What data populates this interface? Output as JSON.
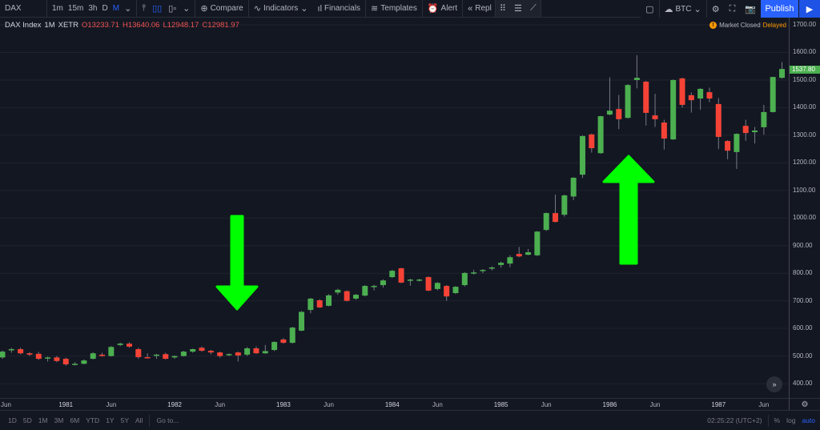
{
  "toolbar": {
    "symbol": "DAX",
    "intervals": [
      "1m",
      "15m",
      "3h",
      "D",
      "M"
    ],
    "active_interval": "M",
    "compare": "Compare",
    "indicators": "Indicators",
    "financials": "Financials",
    "templates": "Templates",
    "alert": "Alert",
    "replay": "Repl",
    "btc": "BTC",
    "publish": "Publish"
  },
  "legend": {
    "title": "DAX Index",
    "interval": "1M",
    "exchange": "XETR",
    "open": "O13233.71",
    "high": "H13640.06",
    "low": "L12948.17",
    "close": "C12981.97"
  },
  "status": {
    "market": "Market Closed",
    "delayed": "Delayed"
  },
  "colors": {
    "up": "#4caf50",
    "down": "#f44336",
    "arrow": "#00ff00",
    "accent": "#2962ff",
    "background": "#131722",
    "delayed": "#ff9800"
  },
  "bottom": {
    "ranges": [
      "1D",
      "5D",
      "1M",
      "3M",
      "6M",
      "YTD",
      "1Y",
      "5Y",
      "All"
    ],
    "goto": "Go to...",
    "clock": "02:25:22 (UTC+2)",
    "percent": "%",
    "log": "log",
    "auto": "auto"
  },
  "annotations": [
    {
      "type": "arrow",
      "direction": "down",
      "color": "#00ff00",
      "near": "1982-09"
    },
    {
      "type": "arrow",
      "direction": "up",
      "color": "#00ff00",
      "near": "1986-05"
    }
  ],
  "chart_data": {
    "type": "candlestick",
    "title": "",
    "ylim": [
      380,
      1720
    ],
    "grid": true,
    "price_ticks": [
      "1700.00",
      "1600.00",
      "1500.00",
      "1400.00",
      "1300.00",
      "1200.00",
      "1100.00",
      "1000.00",
      "900.00",
      "800.00",
      "700.00",
      "600.00",
      "500.00",
      "400.00"
    ],
    "time_ticks": [
      {
        "label": "Jun",
        "date": "1980-06"
      },
      {
        "label": "1981",
        "date": "1981-01"
      },
      {
        "label": "Jun",
        "date": "1981-06"
      },
      {
        "label": "1982",
        "date": "1982-01"
      },
      {
        "label": "Jun",
        "date": "1982-06"
      },
      {
        "label": "1983",
        "date": "1983-01"
      },
      {
        "label": "Jun",
        "date": "1983-06"
      },
      {
        "label": "1984",
        "date": "1984-01"
      },
      {
        "label": "Jun",
        "date": "1984-06"
      },
      {
        "label": "1985",
        "date": "1985-01"
      },
      {
        "label": "Jun",
        "date": "1985-06"
      },
      {
        "label": "1986",
        "date": "1986-01"
      },
      {
        "label": "Jun",
        "date": "1986-06"
      },
      {
        "label": "1987",
        "date": "1987-01"
      },
      {
        "label": "Jun",
        "date": "1987-06"
      }
    ],
    "current_price": "1537.80",
    "start": "1980-06",
    "ohlc_fields": [
      "open",
      "high",
      "low",
      "close"
    ],
    "ohlc": [
      [
        495,
        520,
        490,
        516
      ],
      [
        522,
        530,
        512,
        525
      ],
      [
        525,
        530,
        506,
        510
      ],
      [
        510,
        514,
        500,
        505
      ],
      [
        508,
        515,
        486,
        490
      ],
      [
        495,
        498,
        480,
        495
      ],
      [
        495,
        500,
        478,
        482
      ],
      [
        490,
        494,
        465,
        470
      ],
      [
        470,
        478,
        466,
        472
      ],
      [
        472,
        488,
        470,
        484
      ],
      [
        490,
        514,
        488,
        510
      ],
      [
        505,
        512,
        498,
        500
      ],
      [
        500,
        536,
        498,
        533
      ],
      [
        540,
        549,
        536,
        545
      ],
      [
        545,
        550,
        530,
        534
      ],
      [
        525,
        530,
        490,
        496
      ],
      [
        496,
        510,
        494,
        494
      ],
      [
        505,
        508,
        490,
        505
      ],
      [
        507,
        512,
        488,
        490
      ],
      [
        495,
        502,
        490,
        500
      ],
      [
        500,
        519,
        498,
        516
      ],
      [
        516,
        527,
        512,
        525
      ],
      [
        530,
        535,
        516,
        519
      ],
      [
        519,
        522,
        506,
        513
      ],
      [
        513,
        516,
        494,
        500
      ],
      [
        505,
        510,
        500,
        507
      ],
      [
        513,
        516,
        480,
        502
      ],
      [
        505,
        533,
        500,
        528
      ],
      [
        528,
        535,
        508,
        510
      ],
      [
        510,
        540,
        508,
        518
      ],
      [
        522,
        553,
        518,
        551
      ],
      [
        560,
        565,
        545,
        548
      ],
      [
        548,
        606,
        545,
        603
      ],
      [
        592,
        663,
        590,
        660
      ],
      [
        667,
        711,
        655,
        708
      ],
      [
        702,
        706,
        674,
        676
      ],
      [
        682,
        724,
        680,
        720
      ],
      [
        730,
        744,
        722,
        740
      ],
      [
        735,
        738,
        698,
        700
      ],
      [
        708,
        725,
        704,
        722
      ],
      [
        719,
        757,
        716,
        754
      ],
      [
        754,
        758,
        738,
        754
      ],
      [
        757,
        778,
        748,
        774
      ],
      [
        786,
        812,
        783,
        809
      ],
      [
        818,
        820,
        764,
        766
      ],
      [
        777,
        780,
        755,
        777
      ],
      [
        777,
        780,
        770,
        777
      ],
      [
        786,
        789,
        735,
        737
      ],
      [
        743,
        768,
        738,
        765
      ],
      [
        754,
        757,
        700,
        716
      ],
      [
        728,
        753,
        725,
        751
      ],
      [
        757,
        804,
        752,
        801
      ],
      [
        803,
        812,
        795,
        803
      ],
      [
        812,
        815,
        800,
        812
      ],
      [
        821,
        825,
        810,
        821
      ],
      [
        830,
        842,
        820,
        838
      ],
      [
        835,
        865,
        822,
        858
      ],
      [
        870,
        895,
        858,
        861
      ],
      [
        867,
        888,
        865,
        876
      ],
      [
        865,
        953,
        862,
        951
      ],
      [
        957,
        1020,
        953,
        1018
      ],
      [
        1018,
        1085,
        984,
        986
      ],
      [
        1012,
        1085,
        1005,
        1082
      ],
      [
        1078,
        1148,
        1065,
        1146
      ],
      [
        1157,
        1300,
        1145,
        1297
      ],
      [
        1303,
        1306,
        1237,
        1253
      ],
      [
        1235,
        1370,
        1233,
        1369
      ],
      [
        1375,
        1510,
        1372,
        1389
      ],
      [
        1395,
        1446,
        1322,
        1358
      ],
      [
        1363,
        1485,
        1360,
        1482
      ],
      [
        1500,
        1590,
        1470,
        1508
      ],
      [
        1494,
        1497,
        1335,
        1381
      ],
      [
        1372,
        1450,
        1330,
        1358
      ],
      [
        1346,
        1356,
        1248,
        1288
      ],
      [
        1285,
        1502,
        1283,
        1500
      ],
      [
        1506,
        1508,
        1400,
        1410
      ],
      [
        1445,
        1455,
        1382,
        1427
      ],
      [
        1433,
        1470,
        1392,
        1468
      ],
      [
        1456,
        1472,
        1420,
        1433
      ],
      [
        1413,
        1435,
        1250,
        1294
      ],
      [
        1279,
        1282,
        1213,
        1244
      ],
      [
        1239,
        1307,
        1178,
        1305
      ],
      [
        1334,
        1356,
        1280,
        1308
      ],
      [
        1311,
        1330,
        1270,
        1317
      ],
      [
        1329,
        1410,
        1302,
        1384
      ],
      [
        1384,
        1512,
        1382,
        1511
      ],
      [
        1508,
        1565,
        1505,
        1540
      ]
    ]
  }
}
